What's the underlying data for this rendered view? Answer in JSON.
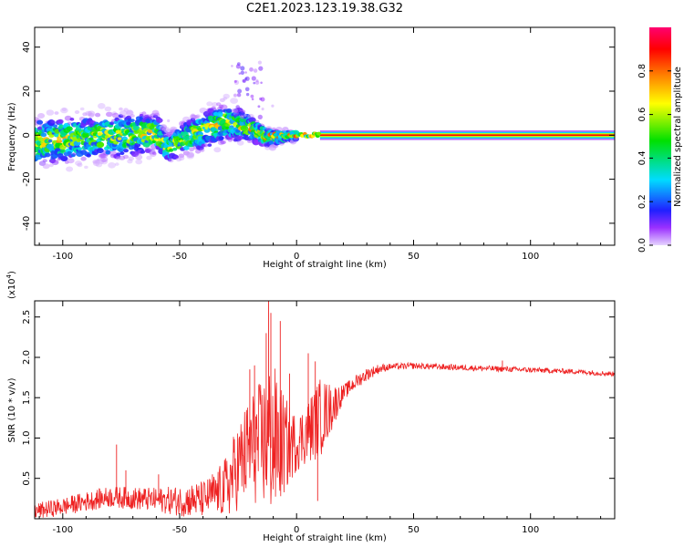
{
  "title": "C2E1.2023.123.19.38.G32",
  "chart_data": [
    {
      "type": "heatmap",
      "xlabel": "Height of straight line (km)",
      "ylabel": "Frequency (Hz)",
      "xlim": [
        -112,
        136
      ],
      "ylim": [
        -50,
        49
      ],
      "xticks": [
        -100,
        -50,
        0,
        50,
        100
      ],
      "yticks": [
        -40,
        -20,
        0,
        20,
        40
      ],
      "grid": false,
      "colorbar": {
        "label": "Normalized spectral amplitude",
        "range": [
          0,
          1
        ],
        "ticks": [
          0.0,
          0.2,
          0.4,
          0.6,
          0.8
        ],
        "colormap": [
          "#dfc8ff",
          "#7a00e8",
          "#0000ff",
          "#00dcff",
          "#00e000",
          "#ffff00",
          "#ff8000",
          "#ff0000",
          "#ff0070"
        ]
      },
      "ridge": [
        {
          "x": -110,
          "freq": -3,
          "width": 11
        },
        {
          "x": -90,
          "freq": -1,
          "width": 10
        },
        {
          "x": -75,
          "freq": 0,
          "width": 10
        },
        {
          "x": -60,
          "freq": 1,
          "width": 9
        },
        {
          "x": -55,
          "freq": -6,
          "width": 6
        },
        {
          "x": -45,
          "freq": 0,
          "width": 8
        },
        {
          "x": -30,
          "freq": 6,
          "width": 9
        },
        {
          "x": -20,
          "freq": 3,
          "width": 6
        },
        {
          "x": -12,
          "freq": -1,
          "width": 4
        },
        {
          "x": 0,
          "freq": 0,
          "width": 2
        },
        {
          "x": 10,
          "freq": 0,
          "width": 1.5
        },
        {
          "x": 136,
          "freq": 0,
          "width": 1.5
        }
      ]
    },
    {
      "type": "line",
      "xlabel": "Height of straight line (km)",
      "ylabel": "SNR (10 * v/v)",
      "yscale_label": "(x10",
      "yscale_exp": "4",
      "yscale_close": ")",
      "xlim": [
        -112,
        136
      ],
      "ylim": [
        0,
        2.7
      ],
      "xticks": [
        -100,
        -50,
        0,
        50,
        100
      ],
      "yticks": [
        0.5,
        1.0,
        1.5,
        2.0,
        2.5
      ],
      "ytick_labels": [
        "0.5",
        "1.0",
        "1.5",
        "2.0",
        "2.5"
      ],
      "grid": false,
      "color": "#ee2222",
      "envelope": {
        "x": [
          -112,
          -100,
          -90,
          -80,
          -70,
          -60,
          -50,
          -40,
          -30,
          -25,
          -20,
          -15,
          -12,
          -10,
          -5,
          0,
          5,
          10,
          15,
          20,
          25,
          30,
          35,
          40,
          50,
          60,
          70,
          80,
          90,
          100,
          110,
          120,
          136
        ],
        "y": [
          0.08,
          0.14,
          0.2,
          0.26,
          0.24,
          0.22,
          0.2,
          0.22,
          0.35,
          0.6,
          0.8,
          0.85,
          0.9,
          0.85,
          0.85,
          0.9,
          1.05,
          1.2,
          1.35,
          1.55,
          1.68,
          1.78,
          1.85,
          1.88,
          1.89,
          1.88,
          1.87,
          1.86,
          1.85,
          1.84,
          1.83,
          1.82,
          1.79
        ]
      },
      "noise": {
        "x": [
          -112,
          -60,
          -35,
          -25,
          -15,
          -10,
          -5,
          0,
          5,
          10,
          20,
          30,
          40,
          136
        ],
        "amp": [
          0.1,
          0.15,
          0.25,
          0.55,
          0.8,
          1.0,
          0.6,
          0.35,
          0.4,
          0.5,
          0.1,
          0.08,
          0.04,
          0.03
        ]
      },
      "spikes": [
        {
          "x": -77,
          "y": 0.92
        },
        {
          "x": -73,
          "y": 0.6
        },
        {
          "x": -59,
          "y": 0.55
        },
        {
          "x": -36,
          "y": 0.55
        },
        {
          "x": -20,
          "y": 1.85
        },
        {
          "x": -18,
          "y": 1.9
        },
        {
          "x": -13,
          "y": 2.3
        },
        {
          "x": -12,
          "y": 2.7
        },
        {
          "x": -11,
          "y": 2.55
        },
        {
          "x": -7,
          "y": 2.45
        },
        {
          "x": -3,
          "y": 1.8
        },
        {
          "x": 5,
          "y": 2.05
        },
        {
          "x": 8,
          "y": 1.95
        },
        {
          "x": 9,
          "y": 0.22
        },
        {
          "x": 88,
          "y": 1.96
        }
      ]
    }
  ]
}
